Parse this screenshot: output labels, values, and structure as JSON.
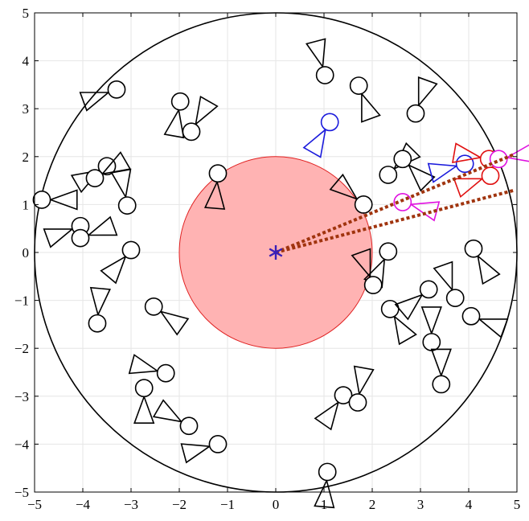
{
  "chart_data": {
    "type": "scatter",
    "title": "",
    "xlabel": "",
    "ylabel": "",
    "xlim": [
      -5,
      5
    ],
    "ylim": [
      -5,
      5
    ],
    "grid": true,
    "xticks": [
      -5,
      -4,
      -3,
      -2,
      -1,
      0,
      1,
      2,
      3,
      4,
      5
    ],
    "yticks": [
      -5,
      -4,
      -3,
      -2,
      -1,
      0,
      1,
      2,
      3,
      4,
      5
    ],
    "xtick_labels": [
      "−5",
      "−4",
      "−3",
      "−2",
      "−1",
      "0",
      "1",
      "2",
      "3",
      "4",
      "5"
    ],
    "ytick_labels": [
      "−5",
      "−4",
      "−3",
      "−2",
      "−1",
      "0",
      "1",
      "2",
      "3",
      "4",
      "5"
    ],
    "outer_circle": {
      "center": [
        0,
        0
      ],
      "radius": 5,
      "color": "#000000"
    },
    "inner_region": {
      "center": [
        0,
        0
      ],
      "radius": 2,
      "fill": "#ffb3b3",
      "stroke": "#e02020"
    },
    "center_marker": {
      "x": 0,
      "y": 0,
      "symbol": "*",
      "color": "#3a1fb8"
    },
    "observation_rays": {
      "color": "#a0340e",
      "origin": [
        0,
        0
      ],
      "endpoints": [
        [
          4.95,
          2.05
        ],
        [
          4.95,
          1.3
        ]
      ]
    },
    "agent_radius": 0.18,
    "series": [
      {
        "color": "#000000",
        "agents": [
          {
            "x": 1.02,
            "y": 3.7,
            "heading": 105
          },
          {
            "x": 1.72,
            "y": 3.48,
            "heading": -70
          },
          {
            "x": 2.9,
            "y": 2.9,
            "heading": 70
          },
          {
            "x": -3.3,
            "y": 3.4,
            "heading": 200
          },
          {
            "x": -1.98,
            "y": 3.15,
            "heading": -100
          },
          {
            "x": -1.75,
            "y": 2.52,
            "heading": 60
          },
          {
            "x": -1.2,
            "y": 1.65,
            "heading": -95
          },
          {
            "x": -3.5,
            "y": 1.8,
            "heading": 210
          },
          {
            "x": -3.75,
            "y": 1.55,
            "heading": 30
          },
          {
            "x": -3.08,
            "y": 0.98,
            "heading": 100
          },
          {
            "x": -4.85,
            "y": 1.1,
            "heading": 0
          },
          {
            "x": -4.05,
            "y": 0.55,
            "heading": 200
          },
          {
            "x": -4.05,
            "y": 0.3,
            "heading": 20
          },
          {
            "x": -3.0,
            "y": 0.05,
            "heading": -130
          },
          {
            "x": -3.7,
            "y": -1.48,
            "heading": 85
          },
          {
            "x": -2.53,
            "y": -1.13,
            "heading": -35
          },
          {
            "x": -2.28,
            "y": -2.52,
            "heading": 165
          },
          {
            "x": -2.73,
            "y": -2.83,
            "heading": -90
          },
          {
            "x": -1.8,
            "y": -3.62,
            "heading": 150
          },
          {
            "x": -1.2,
            "y": -4.0,
            "heading": -165
          },
          {
            "x": 1.82,
            "y": 1.0,
            "heading": 140
          },
          {
            "x": 2.33,
            "y": 1.62,
            "heading": 45
          },
          {
            "x": 2.63,
            "y": 1.95,
            "heading": -45
          },
          {
            "x": 2.33,
            "y": 0.02,
            "heading": -115
          },
          {
            "x": 2.02,
            "y": -0.68,
            "heading": 110
          },
          {
            "x": 2.37,
            "y": -1.18,
            "heading": -60
          },
          {
            "x": 3.17,
            "y": -0.77,
            "heading": -140
          },
          {
            "x": 3.72,
            "y": -0.95,
            "heading": 110
          },
          {
            "x": 3.23,
            "y": -1.87,
            "heading": 90
          },
          {
            "x": 3.43,
            "y": -2.75,
            "heading": 90
          },
          {
            "x": 4.1,
            "y": 0.08,
            "heading": -60
          },
          {
            "x": 4.05,
            "y": -1.33,
            "heading": -20
          },
          {
            "x": 1.4,
            "y": -2.98,
            "heading": -125
          },
          {
            "x": 1.7,
            "y": -3.13,
            "heading": 80
          },
          {
            "x": 1.07,
            "y": -4.58,
            "heading": -95
          }
        ]
      },
      {
        "color": "#1a1adc",
        "agents": [
          {
            "x": 1.12,
            "y": 2.72,
            "heading": -120
          },
          {
            "x": 3.92,
            "y": 1.85,
            "heading": 195
          }
        ]
      },
      {
        "color": "#e01010",
        "agents": [
          {
            "x": 4.45,
            "y": 1.6,
            "heading": 200
          },
          {
            "x": 4.42,
            "y": 1.95,
            "heading": 170
          }
        ]
      },
      {
        "color": "#e010e0",
        "agents": [
          {
            "x": 2.63,
            "y": 1.05,
            "heading": -15
          },
          {
            "x": 4.62,
            "y": 1.95,
            "heading": 10
          }
        ]
      }
    ]
  }
}
